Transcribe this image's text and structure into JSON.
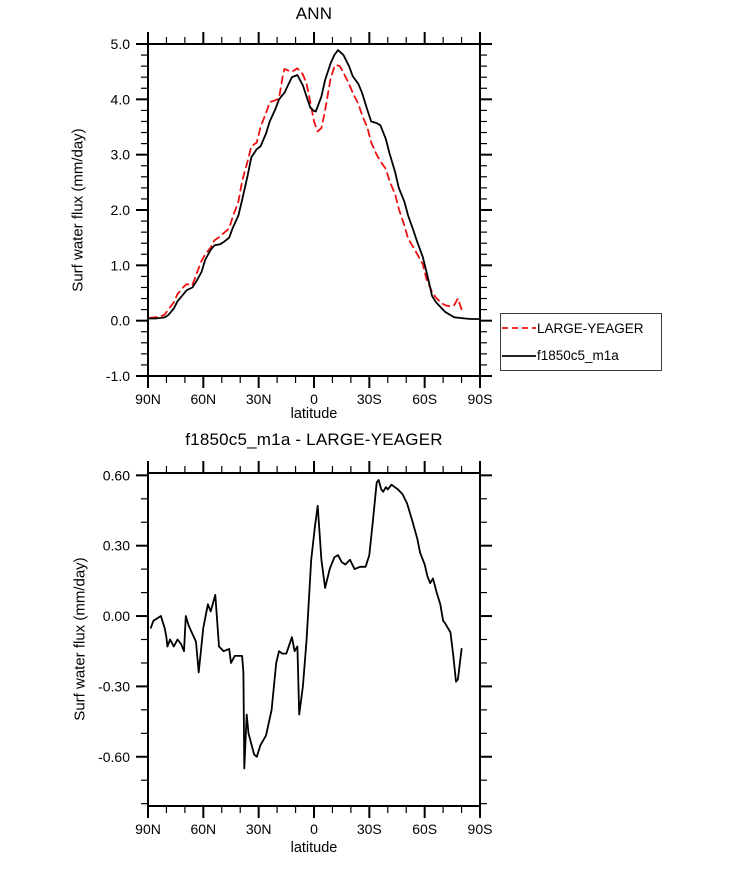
{
  "page": {
    "background": "#ffffff"
  },
  "legend": {
    "position": "right-of-top-chart"
  },
  "chart_data": [
    {
      "type": "line",
      "title": "ANN",
      "xlabel": "latitude",
      "ylabel": "Surf water flux (mm/day)",
      "xlim": [
        90,
        -90
      ],
      "ylim": [
        -1.0,
        5.0
      ],
      "x_ticks": {
        "values": [
          90,
          60,
          30,
          0,
          -30,
          -60,
          -90
        ],
        "labels": [
          "90N",
          "60N",
          "30N",
          "0",
          "30S",
          "60S",
          "90S"
        ],
        "minor_step": 10
      },
      "y_ticks": {
        "values": [
          5,
          4,
          3,
          2,
          1,
          0,
          -1
        ],
        "labels": [
          "5.0",
          "4.0",
          "3.0",
          "2.0",
          "1.0",
          "0.0",
          "-1.0"
        ],
        "minor_step": 0.2
      },
      "grid": false,
      "legend_position": "outside-right-bottom",
      "series": [
        {
          "name": "LARGE-YEAGER",
          "color": "#ee1111",
          "style": "dashed",
          "points": [
            [
              89,
              0.05
            ],
            [
              86,
              0.06
            ],
            [
              83,
              0.08
            ],
            [
              81,
              0.11
            ],
            [
              79,
              0.2
            ],
            [
              76,
              0.33
            ],
            [
              74,
              0.48
            ],
            [
              71,
              0.6
            ],
            [
              69,
              0.66
            ],
            [
              66,
              0.64
            ],
            [
              64,
              0.82
            ],
            [
              61,
              1.08
            ],
            [
              59,
              1.2
            ],
            [
              56,
              1.32
            ],
            [
              54,
              1.45
            ],
            [
              51,
              1.52
            ],
            [
              49,
              1.58
            ],
            [
              46,
              1.67
            ],
            [
              44,
              1.88
            ],
            [
              41,
              2.15
            ],
            [
              39,
              2.52
            ],
            [
              36,
              2.88
            ],
            [
              34,
              3.15
            ],
            [
              31,
              3.22
            ],
            [
              29,
              3.5
            ],
            [
              26,
              3.75
            ],
            [
              24,
              3.95
            ],
            [
              21,
              3.98
            ],
            [
              19,
              4.02
            ],
            [
              17,
              4.4
            ],
            [
              16,
              4.55
            ],
            [
              14,
              4.52
            ],
            [
              12,
              4.5
            ],
            [
              9,
              4.56
            ],
            [
              6,
              4.45
            ],
            [
              4,
              4.28
            ],
            [
              2,
              3.95
            ],
            [
              0,
              3.6
            ],
            [
              -2,
              3.42
            ],
            [
              -4,
              3.48
            ],
            [
              -6,
              3.8
            ],
            [
              -9,
              4.38
            ],
            [
              -11,
              4.58
            ],
            [
              -12,
              4.62
            ],
            [
              -14,
              4.6
            ],
            [
              -16,
              4.48
            ],
            [
              -19,
              4.28
            ],
            [
              -21,
              4.12
            ],
            [
              -24,
              3.92
            ],
            [
              -26,
              3.72
            ],
            [
              -29,
              3.48
            ],
            [
              -31,
              3.22
            ],
            [
              -34,
              3.0
            ],
            [
              -36,
              2.88
            ],
            [
              -39,
              2.74
            ],
            [
              -41,
              2.52
            ],
            [
              -44,
              2.28
            ],
            [
              -46,
              2.02
            ],
            [
              -49,
              1.72
            ],
            [
              -51,
              1.48
            ],
            [
              -54,
              1.32
            ],
            [
              -56,
              1.2
            ],
            [
              -59,
              1.02
            ],
            [
              -61,
              0.75
            ],
            [
              -64,
              0.52
            ],
            [
              -66,
              0.42
            ],
            [
              -69,
              0.32
            ],
            [
              -71,
              0.28
            ],
            [
              -74,
              0.26
            ],
            [
              -76,
              0.28
            ],
            [
              -78,
              0.4
            ],
            [
              -80,
              0.2
            ],
            [
              -81,
              0.15
            ]
          ]
        },
        {
          "name": "f1850c5_m1a",
          "color": "#000000",
          "style": "solid",
          "points": [
            [
              89,
              0.04
            ],
            [
              86,
              0.04
            ],
            [
              83,
              0.05
            ],
            [
              81,
              0.06
            ],
            [
              79,
              0.1
            ],
            [
              76,
              0.22
            ],
            [
              74,
              0.35
            ],
            [
              71,
              0.47
            ],
            [
              69,
              0.55
            ],
            [
              66,
              0.6
            ],
            [
              64,
              0.7
            ],
            [
              61,
              0.88
            ],
            [
              59,
              1.1
            ],
            [
              56,
              1.28
            ],
            [
              54,
              1.36
            ],
            [
              51,
              1.38
            ],
            [
              49,
              1.42
            ],
            [
              46,
              1.5
            ],
            [
              44,
              1.68
            ],
            [
              41,
              1.9
            ],
            [
              39,
              2.18
            ],
            [
              36,
              2.62
            ],
            [
              34,
              2.95
            ],
            [
              31,
              3.1
            ],
            [
              29,
              3.15
            ],
            [
              26,
              3.38
            ],
            [
              24,
              3.6
            ],
            [
              21,
              3.82
            ],
            [
              19,
              4.0
            ],
            [
              16,
              4.12
            ],
            [
              14,
              4.26
            ],
            [
              12,
              4.4
            ],
            [
              9,
              4.44
            ],
            [
              6,
              4.25
            ],
            [
              4,
              4.05
            ],
            [
              2,
              3.85
            ],
            [
              0,
              3.79
            ],
            [
              -1,
              3.78
            ],
            [
              -4,
              4.05
            ],
            [
              -6,
              4.35
            ],
            [
              -9,
              4.65
            ],
            [
              -11,
              4.8
            ],
            [
              -13,
              4.89
            ],
            [
              -16,
              4.8
            ],
            [
              -19,
              4.6
            ],
            [
              -21,
              4.42
            ],
            [
              -24,
              4.28
            ],
            [
              -26,
              4.12
            ],
            [
              -29,
              3.8
            ],
            [
              -31,
              3.6
            ],
            [
              -34,
              3.57
            ],
            [
              -36,
              3.53
            ],
            [
              -39,
              3.28
            ],
            [
              -41,
              3.02
            ],
            [
              -44,
              2.68
            ],
            [
              -46,
              2.4
            ],
            [
              -49,
              2.15
            ],
            [
              -51,
              1.9
            ],
            [
              -54,
              1.62
            ],
            [
              -56,
              1.42
            ],
            [
              -59,
              1.15
            ],
            [
              -61,
              0.88
            ],
            [
              -63,
              0.6
            ],
            [
              -64,
              0.45
            ],
            [
              -66,
              0.34
            ],
            [
              -69,
              0.23
            ],
            [
              -71,
              0.16
            ],
            [
              -74,
              0.1
            ],
            [
              -76,
              0.06
            ],
            [
              -79,
              0.05
            ],
            [
              -82,
              0.04
            ],
            [
              -85,
              0.03
            ],
            [
              -88,
              0.03
            ],
            [
              -90,
              0.03
            ]
          ]
        }
      ]
    },
    {
      "type": "line",
      "title": "f1850c5_m1a - LARGE-YEAGER",
      "xlabel": "latitude",
      "ylabel": "Surf water flux (mm/day)",
      "xlim": [
        90,
        -90
      ],
      "ylim": [
        -0.81,
        0.61
      ],
      "x_ticks": {
        "values": [
          90,
          60,
          30,
          0,
          -30,
          -60,
          -90
        ],
        "labels": [
          "90N",
          "60N",
          "30N",
          "0",
          "30S",
          "60S",
          "90S"
        ],
        "minor_step": 10
      },
      "y_ticks": {
        "values": [
          0.6,
          0.3,
          0.0,
          -0.3,
          -0.6
        ],
        "labels": [
          "0.60",
          "0.30",
          "0.00",
          "-0.30",
          "-0.60"
        ],
        "minor_step": 0.1
      },
      "grid": false,
      "series": [
        {
          "name": "f1850c5_m1a - LARGE-YEAGER",
          "color": "#000000",
          "style": "solid",
          "points": [
            [
              88.5,
              -0.05
            ],
            [
              87,
              -0.02
            ],
            [
              85,
              -0.01
            ],
            [
              83,
              0.0
            ],
            [
              81,
              -0.05
            ],
            [
              80,
              -0.09
            ],
            [
              79.5,
              -0.13
            ],
            [
              78,
              -0.1
            ],
            [
              76,
              -0.13
            ],
            [
              74,
              -0.1
            ],
            [
              72,
              -0.12
            ],
            [
              70.5,
              -0.15
            ],
            [
              69.5,
              0.0
            ],
            [
              68,
              -0.04
            ],
            [
              64,
              -0.11
            ],
            [
              62.5,
              -0.24
            ],
            [
              60,
              -0.05
            ],
            [
              57.5,
              0.05
            ],
            [
              56,
              0.02
            ],
            [
              53.5,
              0.09
            ],
            [
              51.5,
              -0.13
            ],
            [
              49,
              -0.15
            ],
            [
              46,
              -0.14
            ],
            [
              45,
              -0.2
            ],
            [
              43,
              -0.17
            ],
            [
              41,
              -0.17
            ],
            [
              39,
              -0.17
            ],
            [
              38.3,
              -0.24
            ],
            [
              37.8,
              -0.65
            ],
            [
              36.5,
              -0.42
            ],
            [
              35.5,
              -0.5
            ],
            [
              32.5,
              -0.59
            ],
            [
              31,
              -0.6
            ],
            [
              29,
              -0.55
            ],
            [
              26,
              -0.51
            ],
            [
              23,
              -0.4
            ],
            [
              20.5,
              -0.2
            ],
            [
              19,
              -0.15
            ],
            [
              17,
              -0.16
            ],
            [
              15,
              -0.16
            ],
            [
              12,
              -0.09
            ],
            [
              10.5,
              -0.15
            ],
            [
              9,
              -0.13
            ],
            [
              8,
              -0.42
            ],
            [
              6,
              -0.3
            ],
            [
              4,
              -0.1
            ],
            [
              1.5,
              0.24
            ],
            [
              -0.5,
              0.38
            ],
            [
              -2,
              0.47
            ],
            [
              -4,
              0.24
            ],
            [
              -6,
              0.12
            ],
            [
              -8.5,
              0.2
            ],
            [
              -11,
              0.25
            ],
            [
              -13,
              0.26
            ],
            [
              -15,
              0.23
            ],
            [
              -17,
              0.22
            ],
            [
              -19.5,
              0.24
            ],
            [
              -22,
              0.2
            ],
            [
              -25,
              0.21
            ],
            [
              -28,
              0.21
            ],
            [
              -30,
              0.26
            ],
            [
              -32,
              0.41
            ],
            [
              -34,
              0.57
            ],
            [
              -35,
              0.58
            ],
            [
              -36.5,
              0.54
            ],
            [
              -37.5,
              0.53
            ],
            [
              -39,
              0.55
            ],
            [
              -40,
              0.54
            ],
            [
              -42,
              0.56
            ],
            [
              -45.5,
              0.54
            ],
            [
              -48,
              0.52
            ],
            [
              -50.5,
              0.48
            ],
            [
              -53.5,
              0.4
            ],
            [
              -56,
              0.33
            ],
            [
              -57.5,
              0.27
            ],
            [
              -60,
              0.22
            ],
            [
              -61.5,
              0.17
            ],
            [
              -63,
              0.14
            ],
            [
              -64.5,
              0.16
            ],
            [
              -66.5,
              0.1
            ],
            [
              -68.5,
              0.05
            ],
            [
              -70,
              -0.02
            ],
            [
              -71,
              -0.03
            ],
            [
              -74,
              -0.07
            ],
            [
              -75.5,
              -0.17
            ],
            [
              -77,
              -0.28
            ],
            [
              -78,
              -0.27
            ],
            [
              -80,
              -0.14
            ]
          ]
        }
      ]
    }
  ]
}
